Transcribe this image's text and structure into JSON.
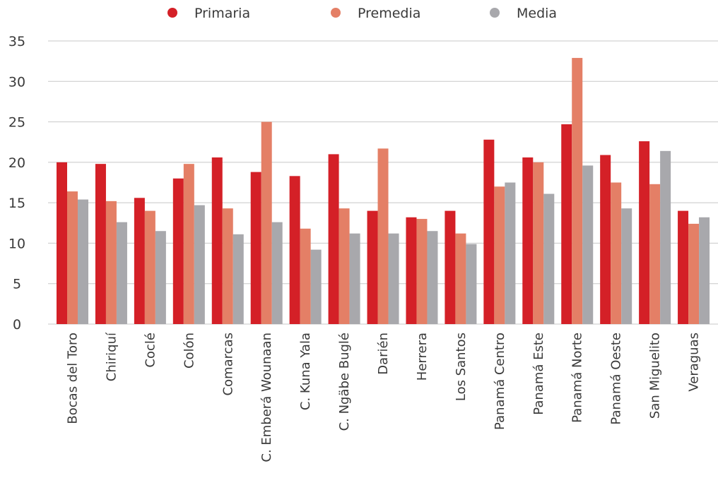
{
  "chart_data": {
    "type": "bar",
    "title": "",
    "xlabel": "",
    "ylabel": "",
    "ylim": [
      0,
      35
    ],
    "yticks": [
      0,
      5,
      10,
      15,
      20,
      25,
      30,
      35
    ],
    "grid": true,
    "legend_position": "top",
    "categories": [
      "Bocas del Toro",
      "Chiriquí",
      "Coclé",
      "Colón",
      "Comarcas",
      "C. Emberá Wounaan",
      "C. Kuna Yala",
      "C. Ngäbe Buglé",
      "Darién",
      "Herrera",
      "Los Santos",
      "Panamá Centro",
      "Panamá Este",
      "Panamá Norte",
      "Panamá Oeste",
      "San Miguelito",
      "Veraguas"
    ],
    "series": [
      {
        "name": "Primaria",
        "color": "#d42027",
        "values": [
          20.0,
          19.8,
          15.6,
          18.0,
          20.6,
          18.8,
          18.3,
          21.0,
          14.0,
          13.2,
          14.0,
          22.8,
          20.6,
          24.7,
          20.9,
          22.6,
          14.0
        ]
      },
      {
        "name": "Premedia",
        "color": "#e47f66",
        "values": [
          16.4,
          15.2,
          14.0,
          19.8,
          14.3,
          25.0,
          11.8,
          14.3,
          21.7,
          13.0,
          11.2,
          17.0,
          20.0,
          32.9,
          17.5,
          17.3,
          12.4
        ]
      },
      {
        "name": "Media",
        "color": "#a8a8ac",
        "values": [
          15.4,
          12.6,
          11.5,
          14.7,
          11.1,
          12.6,
          9.2,
          11.2,
          11.2,
          11.5,
          9.9,
          17.5,
          16.1,
          19.6,
          14.3,
          21.4,
          13.2
        ]
      }
    ]
  }
}
